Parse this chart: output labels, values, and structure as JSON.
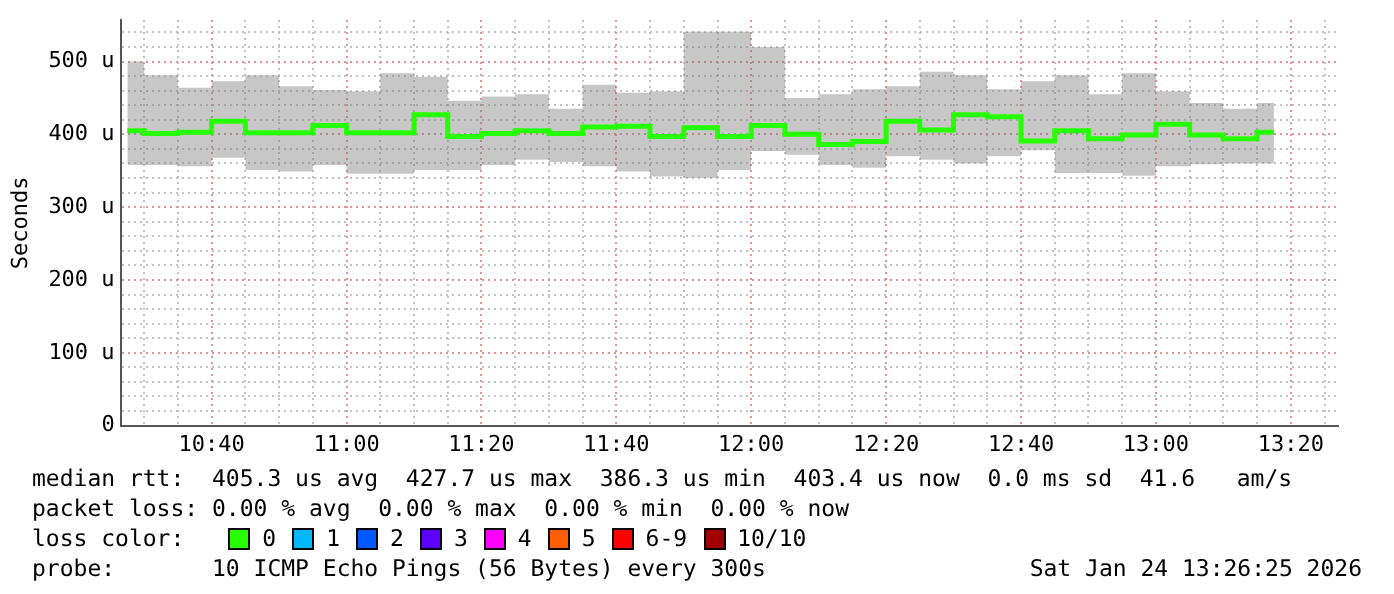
{
  "chart_data": {
    "type": "step",
    "ylabel": "Seconds",
    "legend_title": "loss color:",
    "legend": "bottom",
    "grid": true,
    "line_style": "solid",
    "marker": "none",
    "xlim": [
      10.4417,
      13.45
    ],
    "ylim": [
      0,
      557
    ],
    "xticks": [
      {
        "value": 10.5,
        "label": null
      },
      {
        "value": 10.5833,
        "label": null
      },
      {
        "value": 10.6667,
        "label": "10:40"
      },
      {
        "value": 10.75,
        "label": null
      },
      {
        "value": 10.8333,
        "label": null
      },
      {
        "value": 10.9167,
        "label": null
      },
      {
        "value": 11,
        "label": "11:00"
      },
      {
        "value": 11.0833,
        "label": null
      },
      {
        "value": 11.1667,
        "label": null
      },
      {
        "value": 11.25,
        "label": null
      },
      {
        "value": 11.3333,
        "label": "11:20"
      },
      {
        "value": 11.4167,
        "label": null
      },
      {
        "value": 11.5,
        "label": null
      },
      {
        "value": 11.5833,
        "label": null
      },
      {
        "value": 11.6667,
        "label": "11:40"
      },
      {
        "value": 11.75,
        "label": null
      },
      {
        "value": 11.8333,
        "label": null
      },
      {
        "value": 11.9167,
        "label": null
      },
      {
        "value": 12,
        "label": "12:00"
      },
      {
        "value": 12.0833,
        "label": null
      },
      {
        "value": 12.1667,
        "label": null
      },
      {
        "value": 12.25,
        "label": null
      },
      {
        "value": 12.3333,
        "label": "12:20"
      },
      {
        "value": 12.4167,
        "label": null
      },
      {
        "value": 12.5,
        "label": null
      },
      {
        "value": 12.5833,
        "label": null
      },
      {
        "value": 12.6667,
        "label": "12:40"
      },
      {
        "value": 12.75,
        "label": null
      },
      {
        "value": 12.8333,
        "label": null
      },
      {
        "value": 12.9167,
        "label": null
      },
      {
        "value": 13,
        "label": "13:00"
      },
      {
        "value": 13.0833,
        "label": null
      },
      {
        "value": 13.1667,
        "label": null
      },
      {
        "value": 13.25,
        "label": null
      },
      {
        "value": 13.3333,
        "label": "13:20"
      },
      {
        "value": 13.4167,
        "label": null
      }
    ],
    "yticks": [
      0,
      {
        "value": 20,
        "label": null
      },
      {
        "value": 40,
        "label": null
      },
      {
        "value": 60,
        "label": null
      },
      {
        "value": 80,
        "label": null
      },
      {
        "value": 100,
        "label": "100 u"
      },
      {
        "value": 120,
        "label": null
      },
      {
        "value": 140,
        "label": null
      },
      {
        "value": 160,
        "label": null
      },
      {
        "value": 180,
        "label": null
      },
      {
        "value": 200,
        "label": "200 u"
      },
      {
        "value": 220,
        "label": null
      },
      {
        "value": 240,
        "label": null
      },
      {
        "value": 260,
        "label": null
      },
      {
        "value": 280,
        "label": null
      },
      {
        "value": 300,
        "label": "300 u"
      },
      {
        "value": 320,
        "label": null
      },
      {
        "value": 340,
        "label": null
      },
      {
        "value": 360,
        "label": null
      },
      {
        "value": 380,
        "label": null
      },
      {
        "value": 400,
        "label": "400 u"
      },
      {
        "value": 420,
        "label": null
      },
      {
        "value": 440,
        "label": null
      },
      {
        "value": 460,
        "label": null
      },
      {
        "value": 480,
        "label": null
      },
      {
        "value": 500,
        "label": "500 u"
      },
      {
        "value": 520,
        "label": null
      },
      {
        "value": 540,
        "label": null
      }
    ],
    "x": [
      10.4583,
      10.5417,
      10.625,
      10.7083,
      10.7917,
      10.875,
      10.9583,
      11.0417,
      11.125,
      11.2083,
      11.2917,
      11.375,
      11.4583,
      11.5417,
      11.625,
      11.7083,
      11.7917,
      11.875,
      11.9583,
      12.0417,
      12.125,
      12.2083,
      12.2917,
      12.375,
      12.4583,
      12.5417,
      12.625,
      12.7083,
      12.7917,
      12.875,
      12.9583,
      13.0417,
      13.125,
      13.2083,
      13.2917
    ],
    "series": [
      {
        "name": "0",
        "color": "#26ff00",
        "values": [
          405,
          401,
          403,
          418,
          402,
          402,
          412,
          402,
          402,
          427,
          397,
          401,
          405,
          401,
          410,
          411,
          397,
          409,
          397,
          412,
          400,
          386,
          390,
          418,
          406,
          427,
          424,
          391,
          405,
          394,
          399,
          414,
          399,
          394,
          403
        ],
        "lower": [
          358,
          358,
          356,
          368,
          351,
          349,
          358,
          346,
          346,
          351,
          351,
          358,
          365,
          362,
          356,
          349,
          342,
          340,
          351,
          377,
          372,
          358,
          354,
          370,
          365,
          360,
          370,
          378,
          347,
          347,
          343,
          356,
          359,
          360,
          360
        ],
        "upper": [
          500,
          481,
          464,
          473,
          481,
          466,
          461,
          459,
          484,
          479,
          446,
          452,
          455,
          435,
          468,
          457,
          459,
          541,
          541,
          520,
          450,
          455,
          462,
          466,
          486,
          481,
          462,
          473,
          481,
          455,
          484,
          459,
          443,
          435,
          443
        ]
      },
      {
        "name": "1",
        "color": "#00b8ff",
        "values": [
          null,
          null,
          null,
          null,
          null,
          null,
          null,
          null,
          null,
          null,
          null,
          null,
          null,
          null,
          null,
          null,
          null,
          null,
          null,
          null,
          null,
          null,
          null,
          null,
          null,
          null,
          null,
          null,
          null,
          null,
          null,
          null,
          null,
          null,
          null
        ]
      },
      {
        "name": "2",
        "color": "#0059ff",
        "values": [
          null,
          null,
          null,
          null,
          null,
          null,
          null,
          null,
          null,
          null,
          null,
          null,
          null,
          null,
          null,
          null,
          null,
          null,
          null,
          null,
          null,
          null,
          null,
          null,
          null,
          null,
          null,
          null,
          null,
          null,
          null,
          null,
          null,
          null,
          null
        ]
      },
      {
        "name": "3",
        "color": "#5e00ff",
        "values": [
          null,
          null,
          null,
          null,
          null,
          null,
          null,
          null,
          null,
          null,
          null,
          null,
          null,
          null,
          null,
          null,
          null,
          null,
          null,
          null,
          null,
          null,
          null,
          null,
          null,
          null,
          null,
          null,
          null,
          null,
          null,
          null,
          null,
          null,
          null
        ]
      },
      {
        "name": "4",
        "color": "#ff00ff",
        "values": [
          null,
          null,
          null,
          null,
          null,
          null,
          null,
          null,
          null,
          null,
          null,
          null,
          null,
          null,
          null,
          null,
          null,
          null,
          null,
          null,
          null,
          null,
          null,
          null,
          null,
          null,
          null,
          null,
          null,
          null,
          null,
          null,
          null,
          null,
          null
        ]
      },
      {
        "name": "5",
        "color": "#ff5e00",
        "values": [
          null,
          null,
          null,
          null,
          null,
          null,
          null,
          null,
          null,
          null,
          null,
          null,
          null,
          null,
          null,
          null,
          null,
          null,
          null,
          null,
          null,
          null,
          null,
          null,
          null,
          null,
          null,
          null,
          null,
          null,
          null,
          null,
          null,
          null,
          null
        ]
      },
      {
        "name": "6-9",
        "color": "#ff0000",
        "values": [
          null,
          null,
          null,
          null,
          null,
          null,
          null,
          null,
          null,
          null,
          null,
          null,
          null,
          null,
          null,
          null,
          null,
          null,
          null,
          null,
          null,
          null,
          null,
          null,
          null,
          null,
          null,
          null,
          null,
          null,
          null,
          null,
          null,
          null,
          null
        ]
      },
      {
        "name": "10/10",
        "color": "#a10000",
        "values": [
          null,
          null,
          null,
          null,
          null,
          null,
          null,
          null,
          null,
          null,
          null,
          null,
          null,
          null,
          null,
          null,
          null,
          null,
          null,
          null,
          null,
          null,
          null,
          null,
          null,
          null,
          null,
          null,
          null,
          null,
          null,
          null,
          null,
          null,
          null
        ]
      }
    ],
    "annotations": [
      "median rtt:  405.3 us avg  427.7 us max  386.3 us min  403.4 us now  0.0 ms sd  41.6   am/s",
      "packet loss: 0.00 % avg  0.00 % max  0.00 % min  0.00 % now",
      "probe:       10 ICMP Echo Pings (56 Bytes) every 300s",
      "Sat Jan 24 13:26:25 2026"
    ]
  }
}
